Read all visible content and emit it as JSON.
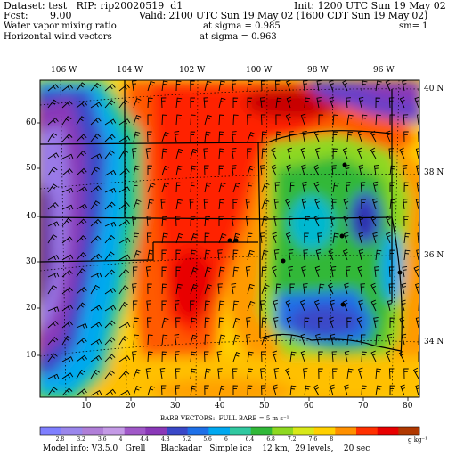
{
  "header": {
    "line1_left": "Dataset: test   RIP: rip20020519  d1",
    "line1_right": "Init: 1200 UTC Sun 19 May 02",
    "line2_left": "Fcst:       9.00",
    "line2_right": "Valid: 2100 UTC Sun 19 May 02 (1600 CDT Sun 19 May 02)",
    "line3_left": "Water vapor mixing ratio",
    "line3_mid": "at sigma = 0.985",
    "line3_right": "sm= 1",
    "line4_left": "Horizontal wind vectors",
    "line4_mid": "at sigma = 0.963"
  },
  "longitudes": [
    "106 W",
    "104 W",
    "102 W",
    "100 W",
    "98 W",
    "96 W"
  ],
  "latitudes": [
    "40 N",
    "38 N",
    "36 N",
    "34 N"
  ],
  "x_ticks": [
    "10",
    "20",
    "30",
    "40",
    "50",
    "60",
    "70",
    "80"
  ],
  "y_ticks": [
    "60",
    "50",
    "40",
    "30",
    "20",
    "10"
  ],
  "barb_caption": "BARB VECTORS:  FULL BARB = 5 m s⁻¹",
  "colorbar": {
    "labels": [
      "2.8",
      "3.2",
      "3.6",
      "4",
      "4.4",
      "4.8",
      "5.2",
      "5.6",
      "6",
      "6.4",
      "6.8",
      "7.2",
      "7.6",
      "8"
    ],
    "units": "g kg⁻¹",
    "colors": [
      "#7f7fff",
      "#9a86ec",
      "#b07fd8",
      "#c49ae6",
      "#a058c8",
      "#8a38b8",
      "#3a48c8",
      "#1e70e8",
      "#00a8f0",
      "#30c8a0",
      "#30b838",
      "#8ed820",
      "#d8e818",
      "#ffd000",
      "#ff9000",
      "#ff3000",
      "#e80000",
      "#b03800"
    ]
  },
  "model_info": "Model info: V3.5.0   Grell      Blackadar   Simple ice    12 km,  29 levels,    20 sec"
}
